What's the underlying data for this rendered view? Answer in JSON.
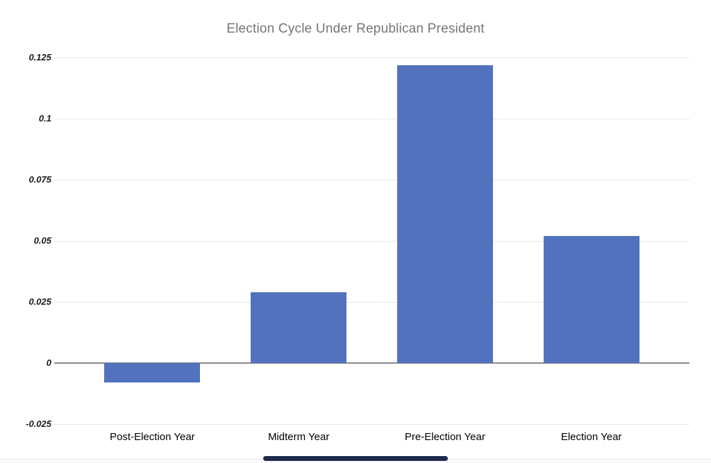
{
  "chart_data": {
    "type": "bar",
    "title": "Election Cycle Under Republican President",
    "categories": [
      "Post-Election Year",
      "Midterm Year",
      "Pre-Election Year",
      "Election Year"
    ],
    "values": [
      -0.008,
      0.029,
      0.122,
      0.052
    ],
    "xlabel": "",
    "ylabel": "",
    "ylim": [
      -0.025,
      0.125
    ],
    "ytick_step": 0.025,
    "ytick_labels": [
      "-0.025",
      "0",
      "0.025",
      "0.05",
      "0.075",
      "0.1",
      "0.125"
    ],
    "grid": true,
    "legend": false
  },
  "colors": {
    "bar": "#5272be",
    "title": "#767676",
    "gridline": "#e8e8e8",
    "zero_axis": "#8a8a8a",
    "tick_text": "#1a1a1a",
    "category_text": "#000000",
    "home_indicator": "#1f2a4d"
  }
}
